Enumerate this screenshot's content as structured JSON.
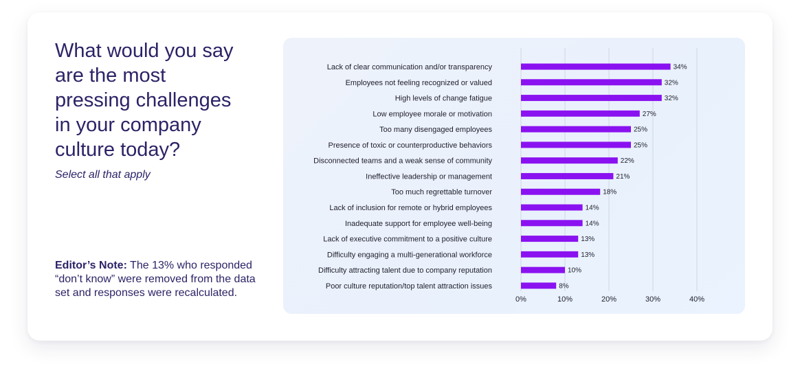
{
  "question": "What would you say\nare the most\npressing challenges\nin your company\nculture today?",
  "subtitle": "Select all that apply",
  "note": {
    "label": "Editor’s Note:",
    "text": " The 13% who responded “don’t know” were removed from the data set and responses were recalculated."
  },
  "colors": {
    "bar": "#8a12f0",
    "title": "#2b2366",
    "grid": "#cfd6e4"
  },
  "chart_data": {
    "type": "bar",
    "orientation": "horizontal",
    "title": "",
    "xlabel": "",
    "ylabel": "",
    "xlim": [
      0,
      40
    ],
    "ticks": [
      0,
      10,
      20,
      30,
      40
    ],
    "tick_labels": [
      "0%",
      "10%",
      "20%",
      "30%",
      "40%"
    ],
    "grid": true,
    "categories": [
      "Lack of clear communication and/or transparency",
      "Employees not feeling recognized or valued",
      "High levels of change fatigue",
      "Low employee morale or motivation",
      "Too many disengaged employees",
      "Presence of toxic or counterproductive behaviors",
      "Disconnected teams and a weak sense of community",
      "Ineffective leadership or management",
      "Too much regrettable turnover",
      "Lack of inclusion for remote or hybrid employees",
      "Inadequate support for employee well-being",
      "Lack of executive commitment to a positive culture",
      "Difficulty engaging a multi-generational workforce",
      "Difficulty attracting talent due to company reputation",
      "Poor culture reputation/top talent attraction issues"
    ],
    "values": [
      34,
      32,
      32,
      27,
      25,
      25,
      22,
      21,
      18,
      14,
      14,
      13,
      13,
      10,
      8
    ],
    "value_labels": [
      "34%",
      "32%",
      "32%",
      "27%",
      "25%",
      "25%",
      "22%",
      "21%",
      "18%",
      "14%",
      "14%",
      "13%",
      "13%",
      "10%",
      "8%"
    ]
  }
}
